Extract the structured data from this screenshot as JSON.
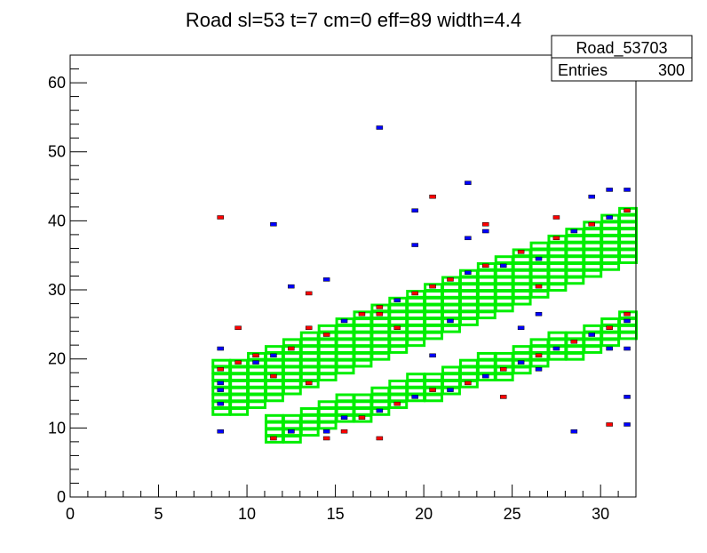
{
  "chart_data": {
    "type": "heatmap",
    "title": "Road sl=53 t=7 cm=0 eff=89 width=4.4",
    "xlabel": "",
    "ylabel": "",
    "xlim": [
      0,
      32
    ],
    "ylim": [
      0,
      64
    ],
    "x_ticks": [
      "0",
      "5",
      "10",
      "15",
      "20",
      "25",
      "30"
    ],
    "y_ticks": [
      "0",
      "10",
      "20",
      "30",
      "40",
      "50",
      "60"
    ],
    "stats_box": {
      "name": "Road_53703",
      "entries_label": "Entries",
      "entries_value": "300"
    },
    "colors": {
      "road_box": "#00ee00",
      "hit_red": "#ff0000",
      "hit_blue": "#0000ff",
      "frame": "#000000"
    },
    "roads": [
      {
        "name": "upper",
        "x_start": 8,
        "x_end": 32,
        "y_start": 12,
        "y_end": 35,
        "height": 8
      },
      {
        "name": "lower",
        "x_start": 11,
        "x_end": 32,
        "y_start": 8,
        "y_end": 24,
        "height": 4
      }
    ],
    "hits_red": [
      [
        8.5,
        40.5
      ],
      [
        9.5,
        24.5
      ],
      [
        11.5,
        17.5
      ],
      [
        13.5,
        29.5
      ],
      [
        13.5,
        16.5
      ],
      [
        18.5,
        24.5
      ],
      [
        20.5,
        43.5
      ],
      [
        23.5,
        39.5
      ],
      [
        24.5,
        14.5
      ],
      [
        26.5,
        30.5
      ],
      [
        27.5,
        40.5
      ],
      [
        29.5,
        39.5
      ],
      [
        30.5,
        10.5
      ],
      [
        8.5,
        18.5
      ],
      [
        9.5,
        19.5
      ],
      [
        10.5,
        20.5
      ],
      [
        12.5,
        21.5
      ],
      [
        14.5,
        23.5
      ],
      [
        16.5,
        26.5
      ],
      [
        17.5,
        27.5
      ],
      [
        19.5,
        29.5
      ],
      [
        20.5,
        30.5
      ],
      [
        21.5,
        31.5
      ],
      [
        23.5,
        33.5
      ],
      [
        25.5,
        35.5
      ],
      [
        27.5,
        37.5
      ],
      [
        29.5,
        39.5
      ],
      [
        31.5,
        41.5
      ],
      [
        12.5,
        9.5
      ],
      [
        14.5,
        8.5
      ],
      [
        16.5,
        11.5
      ],
      [
        18.5,
        13.5
      ],
      [
        20.5,
        15.5
      ],
      [
        22.5,
        16.5
      ],
      [
        24.5,
        18.5
      ],
      [
        26.5,
        20.5
      ],
      [
        28.5,
        22.5
      ],
      [
        30.5,
        24.5
      ],
      [
        31.5,
        26.5
      ],
      [
        11.5,
        8.5
      ],
      [
        17.5,
        8.5
      ],
      [
        15.5,
        9.5
      ],
      [
        17.5,
        26.5
      ],
      [
        13.5,
        24.5
      ]
    ],
    "hits_blue": [
      [
        8.5,
        9.5
      ],
      [
        8.5,
        13.5
      ],
      [
        8.5,
        15.5
      ],
      [
        8.5,
        21.5
      ],
      [
        11.5,
        39.5
      ],
      [
        12.5,
        9.5
      ],
      [
        14.5,
        31.5
      ],
      [
        17.5,
        53.5
      ],
      [
        19.5,
        36.5
      ],
      [
        19.5,
        41.5
      ],
      [
        22.5,
        45.5
      ],
      [
        22.5,
        37.5
      ],
      [
        23.5,
        38.5
      ],
      [
        25.5,
        24.5
      ],
      [
        28.5,
        9.5
      ],
      [
        29.5,
        43.5
      ],
      [
        30.5,
        44.5
      ],
      [
        31.5,
        44.5
      ],
      [
        31.5,
        21.5
      ],
      [
        31.5,
        14.5
      ],
      [
        31.5,
        10.5
      ],
      [
        30.5,
        21.5
      ],
      [
        8.5,
        16.5
      ],
      [
        10.5,
        19.5
      ],
      [
        14.5,
        9.5
      ],
      [
        15.5,
        11.5
      ],
      [
        17.5,
        12.5
      ],
      [
        19.5,
        14.5
      ],
      [
        21.5,
        25.5
      ],
      [
        21.5,
        15.5
      ],
      [
        23.5,
        17.5
      ],
      [
        25.5,
        19.5
      ],
      [
        27.5,
        21.5
      ],
      [
        29.5,
        23.5
      ],
      [
        31.5,
        25.5
      ],
      [
        30.5,
        40.5
      ],
      [
        28.5,
        38.5
      ],
      [
        26.5,
        34.5
      ],
      [
        24.5,
        33.5
      ],
      [
        22.5,
        32.5
      ],
      [
        18.5,
        28.5
      ],
      [
        15.5,
        25.5
      ],
      [
        11.5,
        20.5
      ],
      [
        12.5,
        30.5
      ],
      [
        26.5,
        26.5
      ],
      [
        26.5,
        18.5
      ],
      [
        20.5,
        20.5
      ]
    ]
  }
}
